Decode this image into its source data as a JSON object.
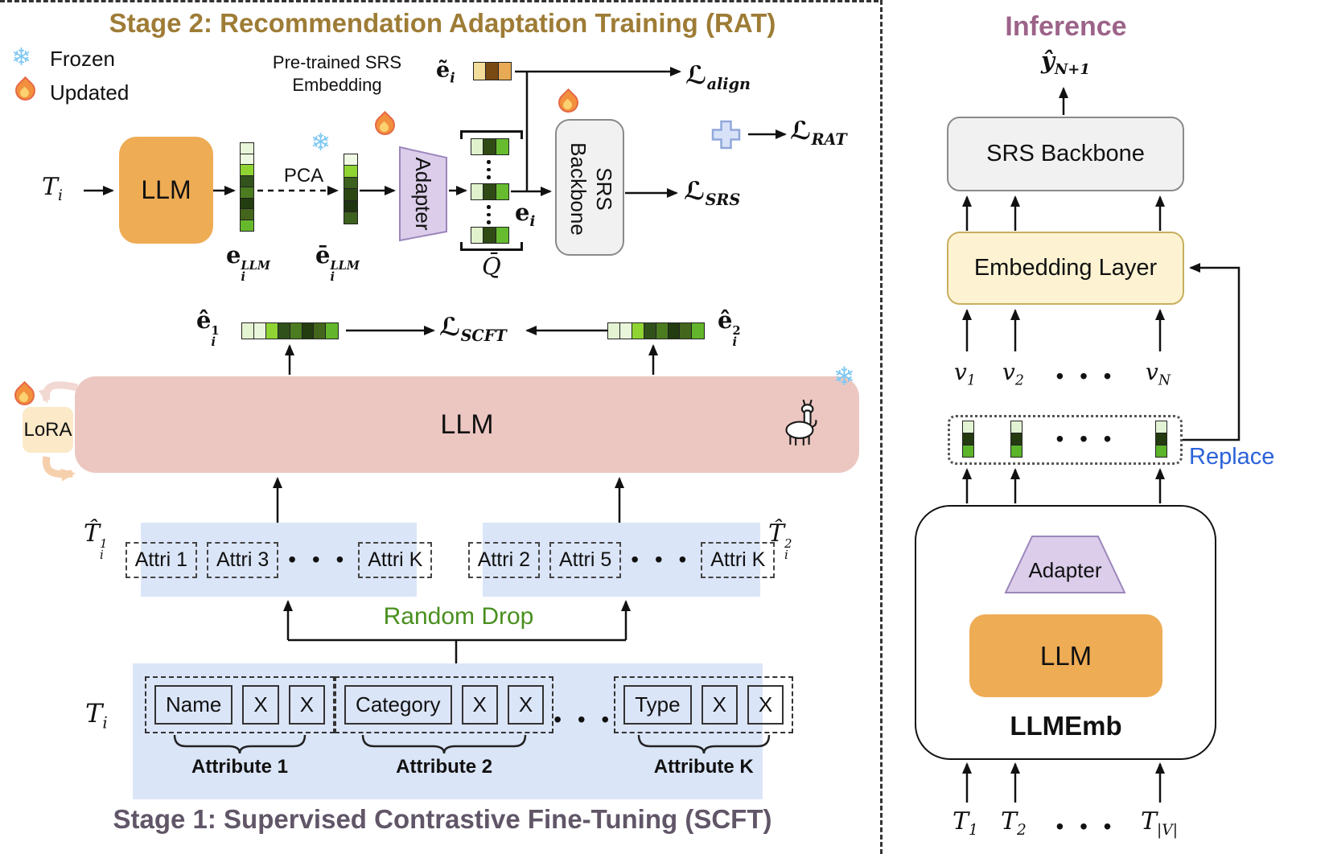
{
  "icons": {
    "snowflake": "❄",
    "dots_h": "•  •  •"
  },
  "colors": {
    "stage2_title": "#9e7c36",
    "stage1_title": "#615668",
    "inference_title": "#9c6389",
    "random_drop_green": "#4a8f1f",
    "replace_blue": "#2b62d9",
    "llm_orange": "#eeac55",
    "llm_pink": "#ecc7c2",
    "lora_cream": "#fbe9c8",
    "attr_blue": "#dbe5f8",
    "adapter_purple": "#dccdeb",
    "srs_gray": "#f1f1f1",
    "embedding_cream": "#fdf3d2"
  },
  "vectors": {
    "e_llm": [
      "#e8f5d8",
      "#edf8e0",
      "#8fd433",
      "#33531c",
      "#4c7c20",
      "#233c10",
      "#44661c",
      "#66b92c"
    ],
    "e_bar": [
      "#eef8e3",
      "#8fd433",
      "#3d611e",
      "#2c4713",
      "#1f3410",
      "#3d611e"
    ],
    "q_row": [
      "#dff2cc",
      "#2f4a15",
      "#66bb2e"
    ],
    "e_tilde": [
      "#f2dd9a",
      "#7a4a14",
      "#e8aa54"
    ],
    "e_hat": [
      "#e4f3d1",
      "#e9f6dc",
      "#8fd433",
      "#31511b",
      "#4c7c20",
      "#233c10",
      "#44661c",
      "#63b52b"
    ],
    "inf_col": [
      "#e2f3d4",
      "#243b10",
      "#5cb42a"
    ]
  },
  "math": {
    "t_i": {
      "base": "T",
      "sub": "i"
    },
    "e_llm": {
      "base": "e",
      "sup": "LLM",
      "sub": "i"
    },
    "e_bar": {
      "base": "ē",
      "sup": "LLM",
      "sub": "i"
    },
    "e_tilde": {
      "base": "ẽ",
      "sub": "i"
    },
    "q_bar": {
      "base": "Q̄"
    },
    "e_i": {
      "base": "e",
      "sub": "i"
    },
    "l_align": {
      "base": "ℒ",
      "sub": "align"
    },
    "l_srs": {
      "base": "ℒ",
      "sub": "SRS"
    },
    "l_rat": {
      "base": "ℒ",
      "sub": "RAT"
    },
    "l_scft": {
      "base": "ℒ",
      "sub": "SCFT"
    },
    "e_hat_1": {
      "base": "ê",
      "sup": "1",
      "sub": "i"
    },
    "e_hat_2": {
      "base": "ê",
      "sup": "2",
      "sub": "i"
    },
    "t_hat_1": {
      "base": "T̂",
      "sup": "1",
      "sub": "i"
    },
    "t_hat_2": {
      "base": "T̂",
      "sup": "2",
      "sub": "i"
    },
    "y_hat": {
      "base": "ŷ",
      "sub": "N+1"
    },
    "v_1": {
      "base": "v",
      "sub": "1"
    },
    "v_2": {
      "base": "v",
      "sub": "2"
    },
    "v_n": {
      "base": "v",
      "sub": "N"
    },
    "t_1": {
      "base": "T",
      "sub": "1"
    },
    "t_2": {
      "base": "T",
      "sub": "2"
    },
    "t_v": {
      "base": "T",
      "sub": "|V|"
    }
  },
  "stage2": {
    "title": "Stage 2: Recommendation Adaptation Training (RAT)",
    "legend": {
      "frozen": "Frozen",
      "updated": "Updated"
    },
    "pretrained_line1": "Pre-trained SRS",
    "pretrained_line2": "Embedding",
    "llm_label": "LLM",
    "pca_label": "PCA",
    "adapter_label": "Adapter",
    "srs_line1": "SRS",
    "srs_line2": "Backbone"
  },
  "stage1": {
    "title": "Stage 1: Supervised Contrastive Fine-Tuning (SCFT)",
    "llm_label": "LLM",
    "lora_label": "LoRA",
    "random_drop": "Random Drop",
    "left_chips": [
      "Attri 1",
      "Attri 3",
      "Attri K"
    ],
    "right_chips": [
      "Attri 2",
      "Attri 5",
      "Attri K"
    ],
    "groups": [
      {
        "token": "Name",
        "x1": "X",
        "x2": "X",
        "label": "Attribute 1"
      },
      {
        "token": "Category",
        "x1": "X",
        "x2": "X",
        "label": "Attribute 2"
      },
      {
        "token": "Type",
        "x1": "X",
        "x2": "X",
        "label": "Attribute K"
      }
    ]
  },
  "inference": {
    "title": "Inference",
    "srs_backbone": "SRS Backbone",
    "embedding_layer": "Embedding Layer",
    "adapter_label": "Adapter",
    "llm_label": "LLM",
    "llmemb_label": "LLMEmb",
    "replace_label": "Replace"
  }
}
